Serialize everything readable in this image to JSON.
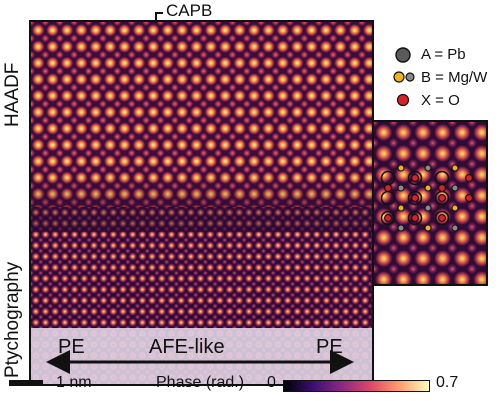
{
  "panel": {
    "top_label": "CAPB",
    "side_label_top": "HAADF",
    "side_label_bottom": "Ptychography",
    "region_left": "PE",
    "region_center": "AFE-like",
    "region_right": "PE"
  },
  "legend": {
    "items": [
      {
        "label": "A = Pb",
        "color": "#5a5a5a"
      },
      {
        "label": "B = Mg/W",
        "color": "#f2b21c",
        "color2": "#8a8a8a"
      },
      {
        "label": "X = O",
        "color": "#d8222a"
      }
    ]
  },
  "scale_bar": {
    "label": "1 nm"
  },
  "colorbar": {
    "title": "Phase (rad.)",
    "min_label": "0",
    "max_label": "0.7",
    "colors": [
      "#000004",
      "#3b0f70",
      "#8c2981",
      "#de4968",
      "#fe9f6d",
      "#fcfdbf"
    ]
  },
  "colors": {
    "o_site": "#d8222a",
    "pb_site": "#5a5a5a",
    "b_site_mg": "#f2b21c",
    "b_site_w": "#8a8a8a"
  }
}
